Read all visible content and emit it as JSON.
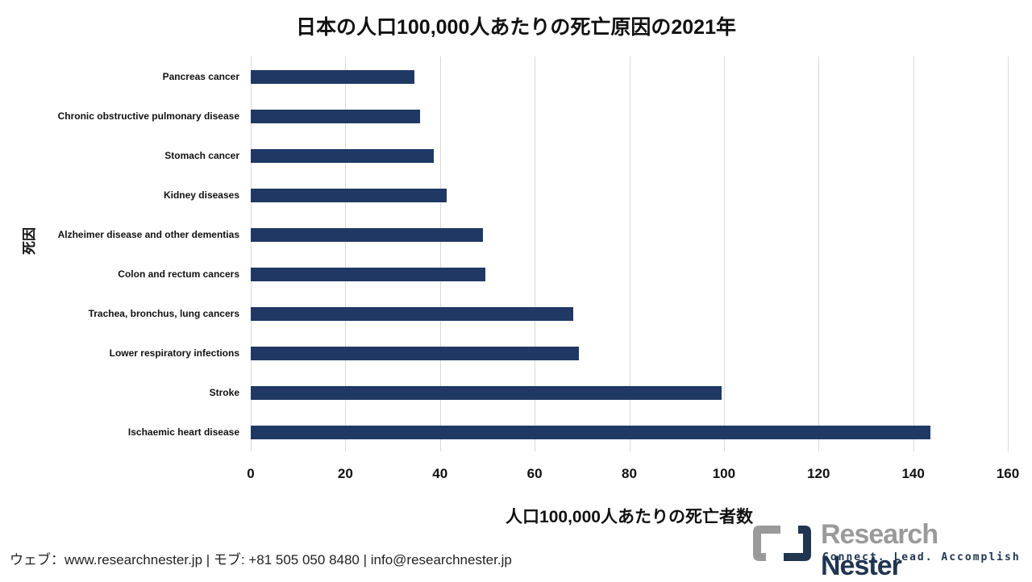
{
  "chart_data": {
    "type": "bar",
    "orientation": "horizontal",
    "title": "日本の人口100,000人あたりの死亡原因の2021年",
    "xlabel": "人口100,000人あたりの死亡者数",
    "ylabel": "死因",
    "xlim": [
      0,
      160
    ],
    "xticks": [
      0,
      20,
      40,
      60,
      80,
      100,
      120,
      140,
      160
    ],
    "grid": true,
    "bar_color": "#203864",
    "categories": [
      "Pancreas cancer",
      "Chronic obstructive pulmonary disease",
      "Stomach cancer",
      "Kidney diseases",
      "Alzheimer disease and other dementias",
      "Colon and rectum cancers",
      "Trachea, bronchus, lung cancers",
      "Lower respiratory infections",
      "Stroke",
      "Ischaemic heart disease"
    ],
    "values": [
      34.6,
      35.8,
      38.7,
      41.4,
      49.1,
      49.6,
      68.2,
      69.4,
      99.5,
      143.6
    ]
  },
  "footer": {
    "contact": "ウェブ：www.researchnester.jp | モブ: +81 505 050 8480 | info@researchnester.jp"
  },
  "logo": {
    "name_part1": "Research",
    "name_part2": "Nester",
    "tagline": "Connect. Lead. Accomplish"
  }
}
